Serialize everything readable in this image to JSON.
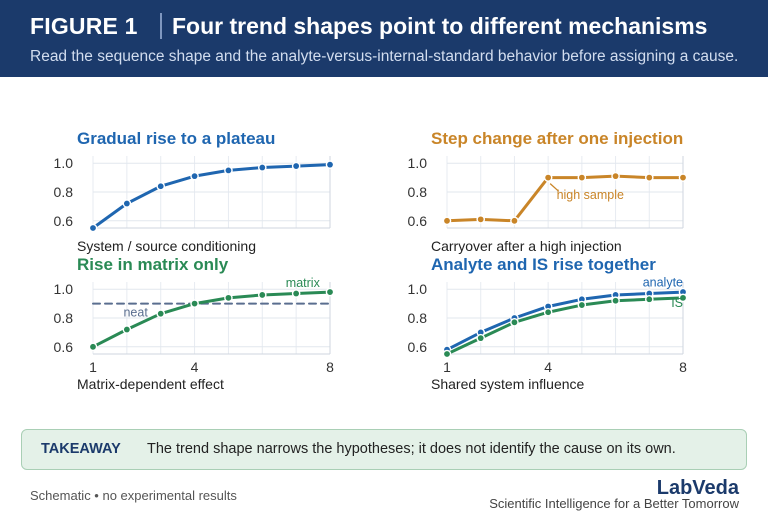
{
  "header": {
    "figure_label": "FIGURE 1",
    "title": "Four trend shapes point to different mechanisms",
    "subtitle": "Read the sequence shape and the analyte-versus-internal-standard behavior before assigning a cause."
  },
  "chart_data": [
    {
      "type": "line",
      "title": "Gradual rise to a plateau",
      "caption": "System / source conditioning",
      "title_color": "#1f66b0",
      "x": [
        1,
        2,
        3,
        4,
        5,
        6,
        7,
        8
      ],
      "xlim": [
        1,
        8
      ],
      "ylim": [
        0.55,
        1.05
      ],
      "yticks": [
        "0.6",
        "0.8",
        "1.0"
      ],
      "xticks": [],
      "series": [
        {
          "color": "#1f66b0",
          "dashed": false,
          "markers": true,
          "values": [
            0.55,
            0.72,
            0.84,
            0.91,
            0.95,
            0.97,
            0.98,
            0.99
          ]
        }
      ],
      "annotations": []
    },
    {
      "type": "line",
      "title": "Step change after one injection",
      "caption": "Carryover after a high injection",
      "title_color": "#c98528",
      "x": [
        1,
        2,
        3,
        4,
        5,
        6,
        7,
        8
      ],
      "xlim": [
        1,
        8
      ],
      "ylim": [
        0.55,
        1.05
      ],
      "yticks": [
        "0.6",
        "0.8",
        "1.0"
      ],
      "xticks": [],
      "series": [
        {
          "color": "#c98528",
          "dashed": false,
          "markers": true,
          "values": [
            0.6,
            0.61,
            0.6,
            0.9,
            0.9,
            0.91,
            0.9,
            0.9
          ]
        }
      ],
      "annotations": [
        {
          "text": "high sample",
          "x": 4.25,
          "y": 0.75,
          "color": "#c98528",
          "anchor": "start",
          "arrow_to": [
            4,
            0.9
          ]
        }
      ]
    },
    {
      "type": "line",
      "title": "Rise in matrix only",
      "caption": "Matrix-dependent effect",
      "title_color": "#2a8a55",
      "x": [
        1,
        2,
        3,
        4,
        5,
        6,
        7,
        8
      ],
      "xlim": [
        1,
        8
      ],
      "ylim": [
        0.55,
        1.05
      ],
      "yticks": [
        "0.6",
        "0.8",
        "1.0"
      ],
      "xticks": [
        "1",
        "4",
        "8"
      ],
      "series": [
        {
          "name": "neat",
          "color": "#5a6e8f",
          "dashed": true,
          "markers": false,
          "values": [
            0.9,
            0.9,
            0.9,
            0.9,
            0.9,
            0.9,
            0.9,
            0.9
          ]
        },
        {
          "name": "matrix",
          "color": "#2a8a55",
          "dashed": false,
          "markers": true,
          "values": [
            0.6,
            0.72,
            0.83,
            0.9,
            0.94,
            0.96,
            0.97,
            0.98
          ]
        }
      ],
      "annotations": [
        {
          "text": "matrix",
          "x": 7.7,
          "y": 1.015,
          "color": "#2a8a55",
          "anchor": "end"
        },
        {
          "text": "neat",
          "x": 1.9,
          "y": 0.81,
          "color": "#5a6e8f",
          "anchor": "start"
        }
      ]
    },
    {
      "type": "line",
      "title": "Analyte and IS rise together",
      "caption": "Shared system influence",
      "title_color": "#1f66b0",
      "x": [
        1,
        2,
        3,
        4,
        5,
        6,
        7,
        8
      ],
      "xlim": [
        1,
        8
      ],
      "ylim": [
        0.55,
        1.05
      ],
      "yticks": [
        "0.6",
        "0.8",
        "1.0"
      ],
      "xticks": [
        "1",
        "4",
        "8"
      ],
      "series": [
        {
          "name": "analyte",
          "color": "#1f66b0",
          "dashed": false,
          "markers": true,
          "values": [
            0.58,
            0.7,
            0.8,
            0.88,
            0.93,
            0.96,
            0.97,
            0.98
          ]
        },
        {
          "name": "IS",
          "color": "#2a8a55",
          "dashed": false,
          "markers": true,
          "values": [
            0.55,
            0.66,
            0.77,
            0.84,
            0.89,
            0.92,
            0.93,
            0.94
          ]
        }
      ],
      "annotations": [
        {
          "text": "analyte",
          "x": 8,
          "y": 1.02,
          "color": "#1f66b0",
          "anchor": "end"
        },
        {
          "text": "IS",
          "x": 8,
          "y": 0.875,
          "color": "#2a8a55",
          "anchor": "end"
        }
      ]
    }
  ],
  "takeaway": {
    "label": "TAKEAWAY",
    "text": "The trend shape narrows the hypotheses; it does not identify the cause on its own."
  },
  "footer": {
    "note": "Schematic • no experimental results",
    "brand": "LabVeda",
    "tagline": "Scientific Intelligence for a Better Tomorrow"
  }
}
